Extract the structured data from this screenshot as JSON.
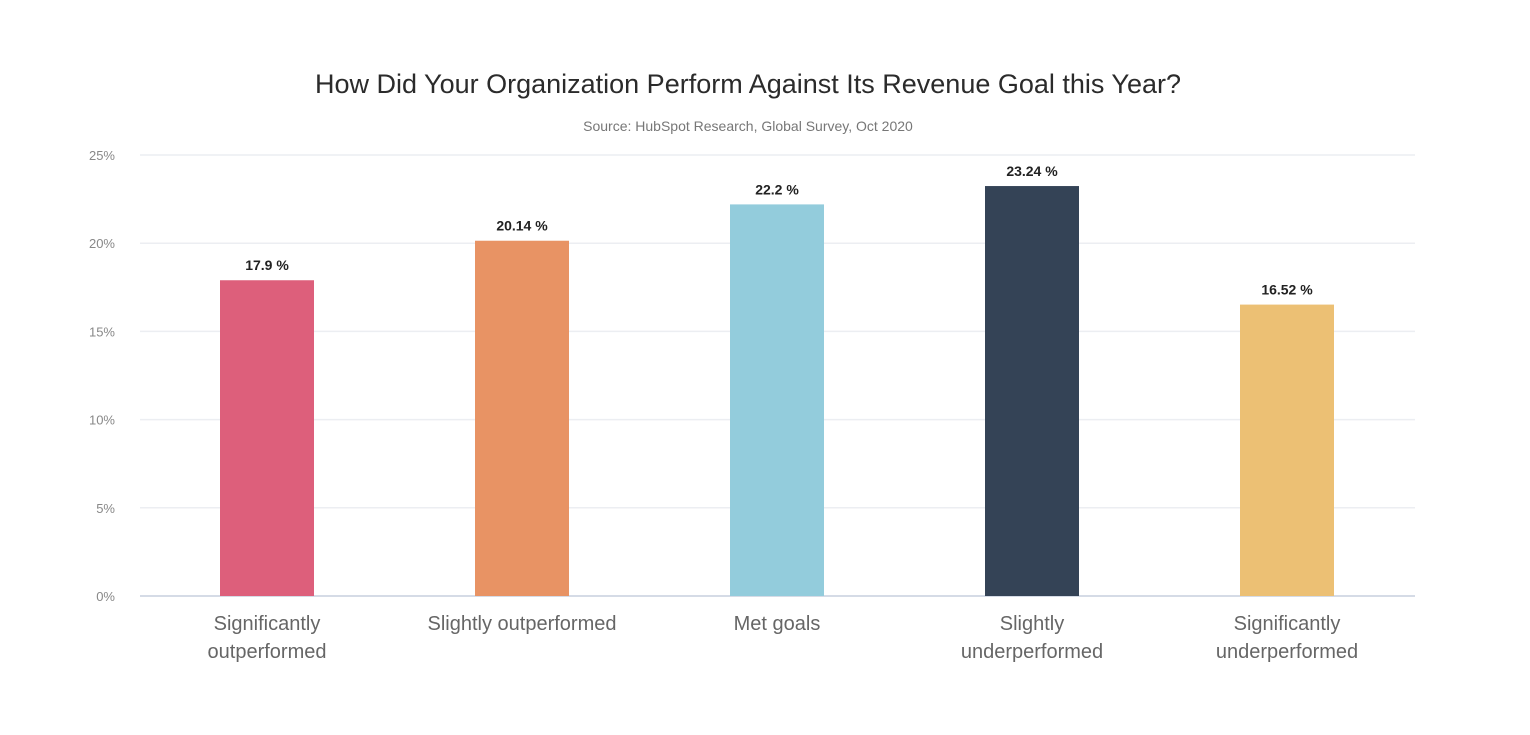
{
  "chart_data": {
    "type": "bar",
    "title": "How Did Your Organization Perform Against Its Revenue Goal this Year?",
    "subtitle": "Source: HubSpot Research, Global Survey, Oct 2020",
    "xlabel": "",
    "ylabel": "",
    "ylim": [
      0,
      25
    ],
    "yticks": [
      0,
      5,
      10,
      15,
      20,
      25
    ],
    "ytick_labels": [
      "0%",
      "5%",
      "10%",
      "15%",
      "20%",
      "25%"
    ],
    "grid": true,
    "categories": [
      [
        "Significantly",
        "outperformed"
      ],
      [
        "Slightly outperformed"
      ],
      [
        "Met goals"
      ],
      [
        "Slightly",
        "underperformed"
      ],
      [
        "Significantly",
        "underperformed"
      ]
    ],
    "values": [
      17.9,
      20.14,
      22.2,
      23.24,
      16.52
    ],
    "data_labels": [
      "17.9 %",
      "20.14 %",
      "22.2 %",
      "23.24 %",
      "16.52 %"
    ],
    "colors": [
      "#dd5f7b",
      "#e89364",
      "#93ccdc",
      "#344356",
      "#ecc074"
    ]
  }
}
